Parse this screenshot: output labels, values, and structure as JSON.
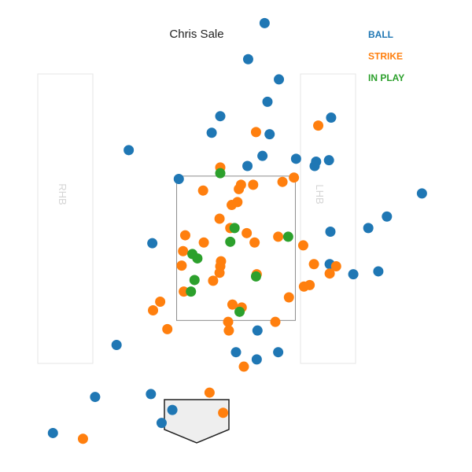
{
  "chart_data": {
    "type": "scatter",
    "title": "Chris Sale",
    "xlabel": "",
    "ylabel": "",
    "batter_boxes": {
      "left_label": "RHB",
      "right_label": "LHB"
    },
    "xlim": [
      -3.3,
      3.3
    ],
    "ylim": [
      -0.6,
      5.94
    ],
    "strike_zone": {
      "x": [
        -0.83,
        0.83
      ],
      "y": [
        1.5,
        3.5
      ]
    },
    "legend_placement": "top-right",
    "series": [
      {
        "name": "BALL",
        "color": "#1f77b4",
        "points": [
          [
            0.4,
            5.62
          ],
          [
            0.17,
            5.12
          ],
          [
            0.6,
            4.84
          ],
          [
            0.44,
            4.53
          ],
          [
            -0.22,
            4.33
          ],
          [
            1.33,
            4.31
          ],
          [
            -0.34,
            4.1
          ],
          [
            0.47,
            4.08
          ],
          [
            -1.5,
            3.86
          ],
          [
            0.37,
            3.78
          ],
          [
            0.84,
            3.74
          ],
          [
            1.12,
            3.7
          ],
          [
            1.3,
            3.72
          ],
          [
            1.1,
            3.64
          ],
          [
            0.16,
            3.64
          ],
          [
            -0.8,
            3.46
          ],
          [
            2.6,
            3.26
          ],
          [
            2.11,
            2.94
          ],
          [
            1.85,
            2.78
          ],
          [
            1.32,
            2.73
          ],
          [
            -1.17,
            2.57
          ],
          [
            1.31,
            2.28
          ],
          [
            1.64,
            2.14
          ],
          [
            1.99,
            2.18
          ],
          [
            0.3,
            1.36
          ],
          [
            -1.67,
            1.16
          ],
          [
            0.0,
            1.06
          ],
          [
            0.59,
            1.06
          ],
          [
            0.29,
            0.96
          ],
          [
            -1.97,
            0.44
          ],
          [
            -1.19,
            0.48
          ],
          [
            -0.89,
            0.26
          ],
          [
            -1.04,
            0.08
          ],
          [
            -2.56,
            -0.06
          ]
        ]
      },
      {
        "name": "STRIKE",
        "color": "#ff7f0e",
        "points": [
          [
            0.28,
            4.11
          ],
          [
            1.15,
            4.2
          ],
          [
            -0.22,
            3.62
          ],
          [
            0.81,
            3.48
          ],
          [
            0.65,
            3.42
          ],
          [
            0.07,
            3.38
          ],
          [
            0.24,
            3.38
          ],
          [
            0.04,
            3.32
          ],
          [
            -0.46,
            3.3
          ],
          [
            0.02,
            3.14
          ],
          [
            -0.06,
            3.1
          ],
          [
            -0.23,
            2.91
          ],
          [
            -0.08,
            2.78
          ],
          [
            0.15,
            2.71
          ],
          [
            -0.71,
            2.68
          ],
          [
            0.59,
            2.66
          ],
          [
            -0.45,
            2.58
          ],
          [
            0.26,
            2.58
          ],
          [
            0.94,
            2.54
          ],
          [
            -0.74,
            2.46
          ],
          [
            -0.21,
            2.32
          ],
          [
            -0.76,
            2.26
          ],
          [
            -0.22,
            2.25
          ],
          [
            1.09,
            2.28
          ],
          [
            1.4,
            2.25
          ],
          [
            -0.23,
            2.16
          ],
          [
            0.29,
            2.14
          ],
          [
            1.31,
            2.15
          ],
          [
            -0.32,
            2.05
          ],
          [
            0.95,
            1.97
          ],
          [
            1.03,
            1.99
          ],
          [
            -0.73,
            1.9
          ],
          [
            0.74,
            1.82
          ],
          [
            -1.06,
            1.76
          ],
          [
            -0.05,
            1.72
          ],
          [
            0.08,
            1.68
          ],
          [
            -1.16,
            1.64
          ],
          [
            -0.11,
            1.48
          ],
          [
            0.55,
            1.48
          ],
          [
            -0.96,
            1.38
          ],
          [
            -0.1,
            1.36
          ],
          [
            0.11,
            0.86
          ],
          [
            -0.37,
            0.5
          ],
          [
            -0.18,
            0.22
          ],
          [
            -2.14,
            -0.14
          ]
        ]
      },
      {
        "name": "IN PLAY",
        "color": "#2ca02c",
        "points": [
          [
            -0.22,
            3.54
          ],
          [
            -0.02,
            2.78
          ],
          [
            0.73,
            2.66
          ],
          [
            -0.08,
            2.59
          ],
          [
            -0.61,
            2.42
          ],
          [
            -0.54,
            2.36
          ],
          [
            -0.58,
            2.06
          ],
          [
            0.28,
            2.11
          ],
          [
            -0.63,
            1.9
          ],
          [
            0.05,
            1.62
          ]
        ]
      }
    ]
  }
}
